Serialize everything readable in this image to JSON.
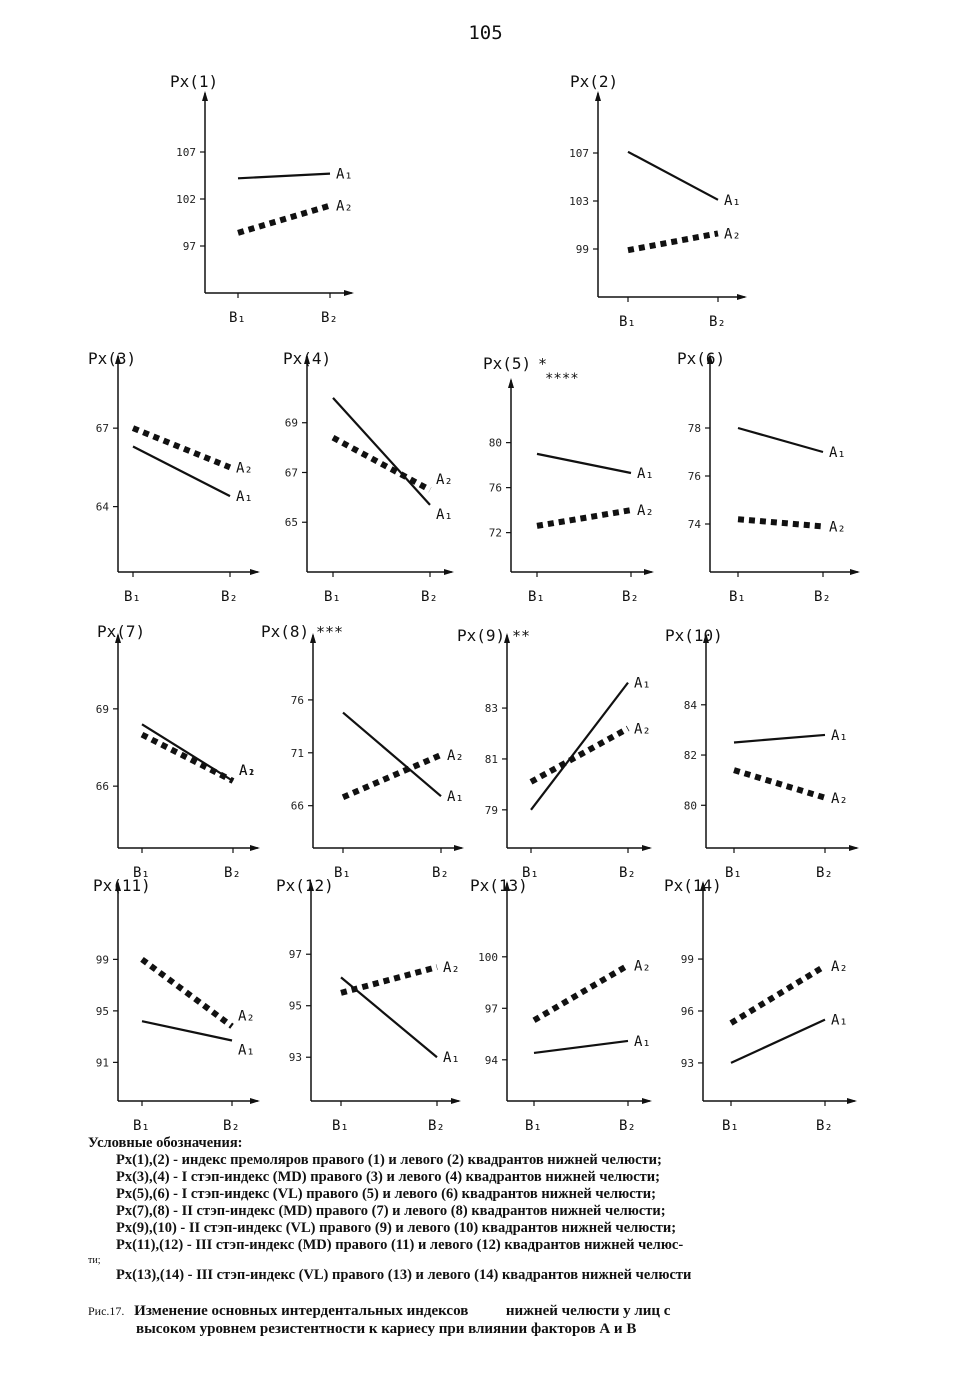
{
  "page_number": "105",
  "legend": {
    "heading": "Условные обозначения:",
    "lines": [
      "Px(1),(2)  -  индекс премоляров правого (1) и левого (2) квадрантов нижней челюсти;",
      "Px(3),(4)  -  I стэп-индекс (MD) правого (3) и левого (4) квадрантов нижней челюсти;",
      "Px(5),(6)  -  I стэп-индекс (VL) правого (5) и левого (6) квадрантов нижней челюсти;",
      "Px(7),(8)  -  II стэп-индекс (MD) правого (7) и левого (8) квадрантов нижней челюсти;",
      "Px(9),(10)  -  II стэп-индекс (VL) правого (9) и левого (10) квадрантов нижней челюсти;",
      "Px(11),(12)  -  III стэп-индекс (MD) правого (11) и левого (12) квадрантов нижней челюс-"
    ],
    "wrap_fragment": "ти;",
    "last_line": "Px(13),(14)  -  III стэп-индекс (VL) правого (13) и левого (14) квадрантов нижней челюсти"
  },
  "caption": {
    "fig_label": "Рис.17.",
    "text_part1": "Изменение основных интердентальных индексов",
    "text_part2": "нижней челюсти у лиц с",
    "text_line2": "высоком уровнем резистентности к кариесу при влиянии факторов А и В"
  },
  "chart_data": [
    {
      "type": "line",
      "title": "Px(1)",
      "categories": [
        "B1",
        "B2"
      ],
      "yticks": [
        97,
        102,
        107
      ],
      "ylim": [
        92,
        112
      ],
      "series": [
        {
          "name": "A1",
          "values": [
            104.2,
            104.7
          ],
          "style": "solid"
        },
        {
          "name": "A2",
          "values": [
            98.4,
            101.3
          ],
          "style": "dotted"
        }
      ]
    },
    {
      "type": "line",
      "title": "Px(2)",
      "categories": [
        "B1",
        "B2"
      ],
      "yticks": [
        99,
        103,
        107
      ],
      "ylim": [
        95,
        111
      ],
      "series": [
        {
          "name": "A1",
          "values": [
            107.1,
            103.1
          ],
          "style": "solid"
        },
        {
          "name": "A2",
          "values": [
            98.9,
            100.3
          ],
          "style": "dotted"
        }
      ]
    },
    {
      "type": "line",
      "title": "Px(3)",
      "categories": [
        "B1",
        "B2"
      ],
      "yticks": [
        64,
        67
      ],
      "ylim": [
        61.5,
        69.3
      ],
      "series": [
        {
          "name": "A1",
          "values": [
            66.3,
            64.4
          ],
          "style": "solid"
        },
        {
          "name": "A2",
          "values": [
            67.0,
            65.5
          ],
          "style": "dotted"
        }
      ]
    },
    {
      "type": "line",
      "title": "Px(4)",
      "categories": [
        "B1",
        "B2"
      ],
      "yticks": [
        65,
        67,
        69
      ],
      "ylim": [
        63,
        71.2
      ],
      "series": [
        {
          "name": "A1",
          "values": [
            70.0,
            65.7
          ],
          "style": "solid"
        },
        {
          "name": "A2",
          "values": [
            68.4,
            66.3
          ],
          "style": "dotted"
        }
      ]
    },
    {
      "type": "line",
      "title": "Px(5)",
      "marker": "*",
      "marker2": "****",
      "categories": [
        "B1",
        "B2"
      ],
      "yticks": [
        72,
        76,
        80
      ],
      "ylim": [
        68.5,
        84.5
      ],
      "series": [
        {
          "name": "A1",
          "values": [
            79.0,
            77.3
          ],
          "style": "solid"
        },
        {
          "name": "A2",
          "values": [
            72.6,
            74.0
          ],
          "style": "dotted"
        }
      ]
    },
    {
      "type": "line",
      "title": "Px(6)",
      "categories": [
        "B1",
        "B2"
      ],
      "yticks": [
        74,
        76,
        78
      ],
      "ylim": [
        72,
        80.5
      ],
      "series": [
        {
          "name": "A1",
          "values": [
            78.0,
            77.0
          ],
          "style": "solid"
        },
        {
          "name": "A2",
          "values": [
            74.2,
            73.9
          ],
          "style": "dotted"
        }
      ]
    },
    {
      "type": "line",
      "title": "Px(7)",
      "categories": [
        "B1",
        "B2"
      ],
      "yticks": [
        66,
        69
      ],
      "ylim": [
        63.6,
        71.4
      ],
      "series": [
        {
          "name": "A1",
          "values": [
            68.4,
            66.2
          ],
          "style": "solid"
        },
        {
          "name": "A2",
          "values": [
            68.0,
            66.2
          ],
          "style": "dotted"
        }
      ]
    },
    {
      "type": "line",
      "title": "Px(8)",
      "marker": "***",
      "categories": [
        "B1",
        "B2"
      ],
      "yticks": [
        66,
        71,
        76
      ],
      "ylim": [
        62,
        81
      ],
      "series": [
        {
          "name": "A1",
          "values": [
            74.8,
            66.9
          ],
          "style": "solid"
        },
        {
          "name": "A2",
          "values": [
            66.8,
            70.8
          ],
          "style": "dotted"
        }
      ]
    },
    {
      "type": "line",
      "title": "Px(9)",
      "marker": "**",
      "categories": [
        "B1",
        "B2"
      ],
      "yticks": [
        79,
        81,
        83
      ],
      "ylim": [
        77.5,
        85.4
      ],
      "series": [
        {
          "name": "A1",
          "values": [
            79.0,
            84.0
          ],
          "style": "solid"
        },
        {
          "name": "A2",
          "values": [
            80.1,
            82.2
          ],
          "style": "dotted"
        }
      ]
    },
    {
      "type": "line",
      "title": "Px(10)",
      "categories": [
        "B1",
        "B2"
      ],
      "yticks": [
        80,
        82,
        84
      ],
      "ylim": [
        78.3,
        86.3
      ],
      "series": [
        {
          "name": "A1",
          "values": [
            82.5,
            82.8
          ],
          "style": "solid"
        },
        {
          "name": "A2",
          "values": [
            81.4,
            80.3
          ],
          "style": "dotted"
        }
      ]
    },
    {
      "type": "line",
      "title": "Px(11)",
      "categories": [
        "B1",
        "B2"
      ],
      "yticks": [
        91,
        95,
        99
      ],
      "ylim": [
        88,
        104
      ],
      "series": [
        {
          "name": "A1",
          "values": [
            94.2,
            92.7
          ],
          "style": "solid"
        },
        {
          "name": "A2",
          "values": [
            99.0,
            93.8
          ],
          "style": "dotted"
        }
      ]
    },
    {
      "type": "line",
      "title": "Px(12)",
      "categories": [
        "B1",
        "B2"
      ],
      "yticks": [
        93,
        95,
        97
      ],
      "ylim": [
        91.3,
        99.3
      ],
      "series": [
        {
          "name": "A1",
          "values": [
            96.1,
            93.0
          ],
          "style": "solid"
        },
        {
          "name": "A2",
          "values": [
            95.5,
            96.5
          ],
          "style": "dotted"
        }
      ]
    },
    {
      "type": "line",
      "title": "Px(13)",
      "categories": [
        "B1",
        "B2"
      ],
      "yticks": [
        94,
        97,
        100
      ],
      "ylim": [
        91.6,
        103.6
      ],
      "series": [
        {
          "name": "A1",
          "values": [
            94.4,
            95.1
          ],
          "style": "solid"
        },
        {
          "name": "A2",
          "values": [
            96.3,
            99.5
          ],
          "style": "dotted"
        }
      ]
    },
    {
      "type": "line",
      "title": "Px(14)",
      "categories": [
        "B1",
        "B2"
      ],
      "yticks": [
        93,
        96,
        99
      ],
      "ylim": [
        90.8,
        102.7
      ],
      "series": [
        {
          "name": "A1",
          "values": [
            93.0,
            95.5
          ],
          "style": "solid"
        },
        {
          "name": "A2",
          "values": [
            95.3,
            98.6
          ],
          "style": "dotted"
        }
      ]
    }
  ]
}
